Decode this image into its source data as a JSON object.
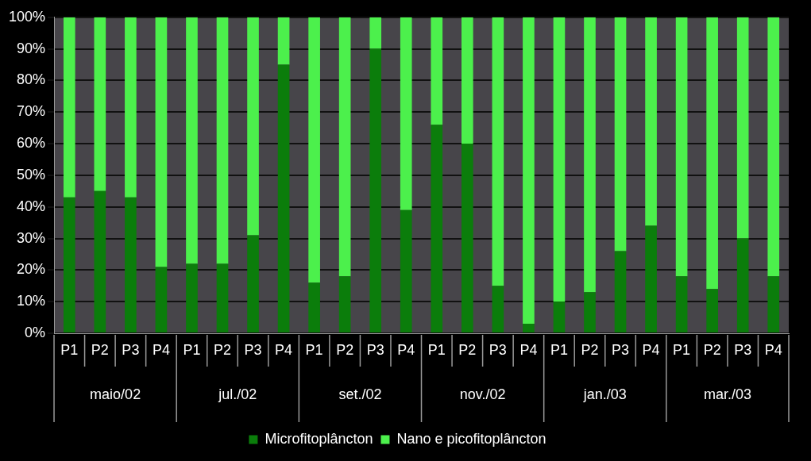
{
  "chart_data": {
    "type": "bar",
    "stacked": true,
    "categories": [
      "P1",
      "P2",
      "P3",
      "P4",
      "P1",
      "P2",
      "P3",
      "P4",
      "P1",
      "P2",
      "P3",
      "P4",
      "P1",
      "P2",
      "P3",
      "P4",
      "P1",
      "P2",
      "P3",
      "P4",
      "P1",
      "P2",
      "P3",
      "P4"
    ],
    "series": [
      {
        "name": "Microfitoplâncton",
        "color": "#0b7d0b",
        "values": [
          43,
          45,
          43,
          21,
          22,
          22,
          31,
          85,
          16,
          18,
          90,
          39,
          66,
          60,
          15,
          3,
          10,
          13,
          26,
          34,
          18,
          14,
          30,
          18
        ]
      },
      {
        "name": "Nano e picofitoplâncton",
        "color": "#4cf04c",
        "values": [
          57,
          55,
          57,
          79,
          78,
          78,
          69,
          15,
          84,
          82,
          10,
          61,
          34,
          40,
          85,
          97,
          90,
          87,
          74,
          66,
          82,
          86,
          70,
          82
        ]
      }
    ],
    "annotations": [
      "maio/02",
      "jul./02",
      "set./02",
      "nov./02",
      "jan./03",
      "mar./03"
    ],
    "ylim": [
      0,
      100
    ],
    "yticks": [
      {
        "value": 0,
        "label": "0%"
      },
      {
        "value": 10,
        "label": "10%"
      },
      {
        "value": 20,
        "label": "20%"
      },
      {
        "value": 30,
        "label": "30%"
      },
      {
        "value": 40,
        "label": "40%"
      },
      {
        "value": 50,
        "label": "50%"
      },
      {
        "value": 60,
        "label": "60%"
      },
      {
        "value": 70,
        "label": "70%"
      },
      {
        "value": 80,
        "label": "80%"
      },
      {
        "value": 90,
        "label": "90%"
      },
      {
        "value": 100,
        "label": "100%"
      }
    ],
    "grid": "y",
    "legend": "bottom"
  }
}
